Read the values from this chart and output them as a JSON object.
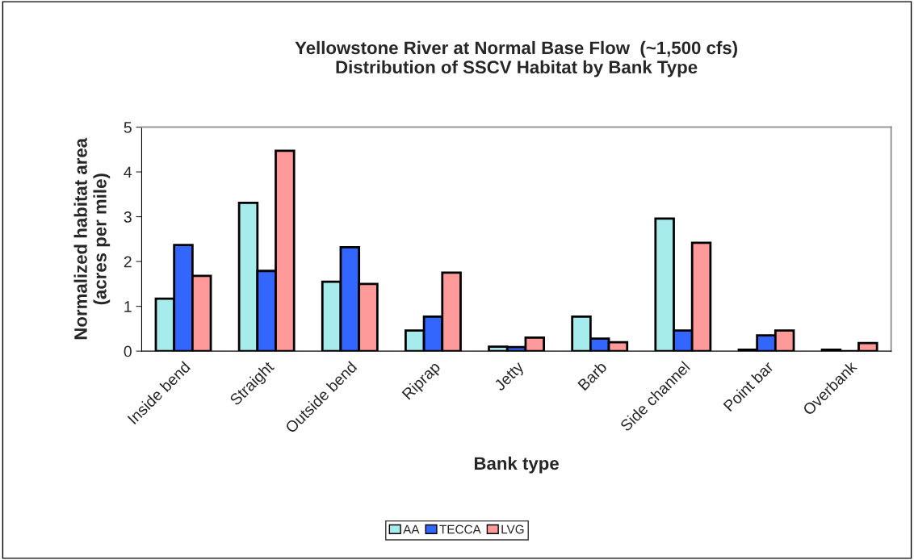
{
  "chart_data": {
    "type": "bar",
    "title": "Yellowstone River at Normal Base Flow  (~1,500 cfs)\nDistribution of SSCV Habitat by Bank Type",
    "xlabel": "Bank type",
    "ylabel": "Normalized habitat area\n(acres per mile)",
    "categories": [
      "Inside bend",
      "Straight",
      "Outside bend",
      "Riprap",
      "Jetty",
      "Barb",
      "Side channel",
      "Point bar",
      "Overbank"
    ],
    "series": [
      {
        "name": "AA",
        "color": "#a6ecec",
        "values": [
          1.17,
          3.31,
          1.55,
          0.46,
          0.1,
          0.77,
          2.96,
          0.03,
          0.03
        ]
      },
      {
        "name": "TECCA",
        "color": "#3366ff",
        "values": [
          2.37,
          1.79,
          2.32,
          0.77,
          0.09,
          0.28,
          0.46,
          0.35,
          null
        ]
      },
      {
        "name": "LVG",
        "color": "#ff9a9a",
        "values": [
          1.68,
          4.47,
          1.5,
          1.75,
          0.3,
          0.2,
          2.42,
          0.46,
          0.18
        ]
      }
    ],
    "ylim": [
      0,
      5
    ],
    "yticks": [
      0,
      1,
      2,
      3,
      4,
      5
    ],
    "grid": false,
    "legend": "bottom"
  }
}
